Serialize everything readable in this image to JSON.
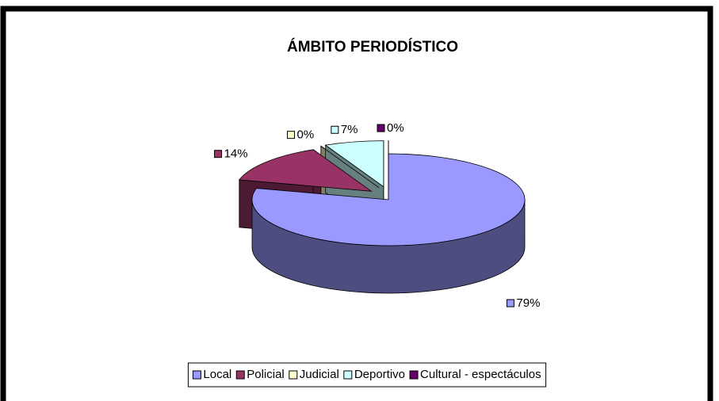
{
  "chart_data": {
    "type": "pie",
    "title": "ÁMBITO PERIODÍSTICO",
    "categories": [
      "Local",
      "Policial",
      "Judicial",
      "Deportivo",
      "Cultural - espectáculos"
    ],
    "values": [
      79,
      14,
      0,
      7,
      0
    ],
    "value_labels": [
      "79%",
      "14%",
      "0%",
      "7%",
      "0%"
    ],
    "colors": [
      "#9999ff",
      "#993366",
      "#ffffcc",
      "#ccffff",
      "#660066"
    ],
    "legend": "bottom"
  }
}
